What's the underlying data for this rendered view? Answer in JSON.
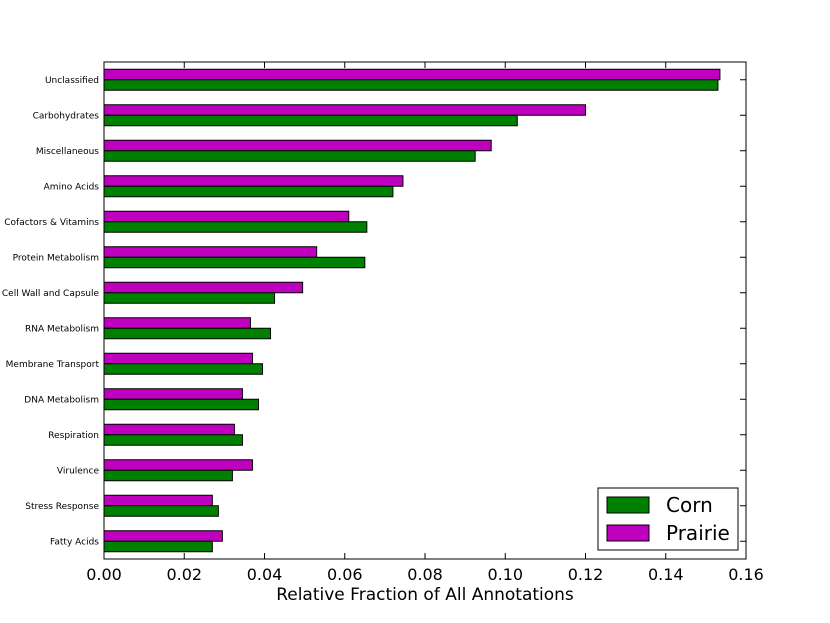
{
  "chart_data": {
    "type": "bar",
    "orientation": "horizontal",
    "categories": [
      "Unclassified",
      "Carbohydrates",
      "Miscellaneous",
      "Amino Acids",
      "Cofactors & Vitamins",
      "Protein Metabolism",
      "Cell Wall and Capsule",
      "RNA Metabolism",
      "Membrane Transport",
      "DNA Metabolism",
      "Respiration",
      "Virulence",
      "Stress Response",
      "Fatty Acids"
    ],
    "series": [
      {
        "name": "Corn",
        "color": "#008000",
        "values": [
          0.153,
          0.103,
          0.0925,
          0.072,
          0.0655,
          0.065,
          0.0425,
          0.0415,
          0.0395,
          0.0385,
          0.0345,
          0.032,
          0.0285,
          0.027
        ]
      },
      {
        "name": "Prairie",
        "color": "#bf00bf",
        "values": [
          0.1535,
          0.12,
          0.0965,
          0.0745,
          0.061,
          0.053,
          0.0495,
          0.0365,
          0.037,
          0.0345,
          0.0325,
          0.037,
          0.027,
          0.0295
        ]
      }
    ],
    "xlabel": "Relative Fraction of All Annotations",
    "ylabel": "",
    "xlim": [
      0,
      0.16
    ],
    "xticks": [
      "0.00",
      "0.02",
      "0.04",
      "0.06",
      "0.08",
      "0.10",
      "0.12",
      "0.14",
      "0.16"
    ],
    "grid": false,
    "legend_position": "lower-right"
  }
}
